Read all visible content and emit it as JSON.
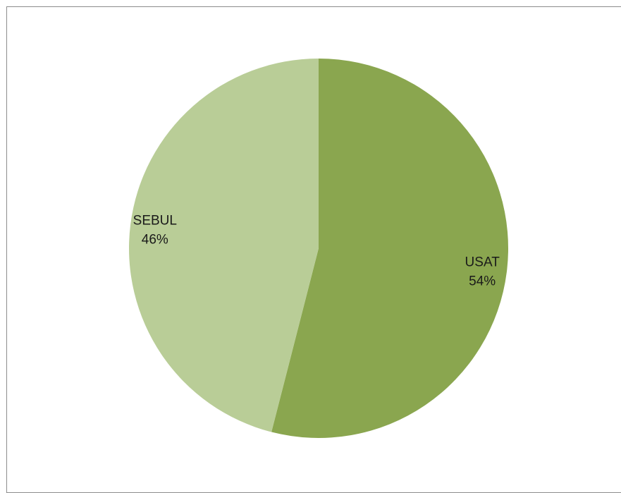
{
  "chart_data": {
    "type": "pie",
    "title": "",
    "categories": [
      "USAT",
      "SEBUL"
    ],
    "values": [
      54,
      46
    ],
    "value_labels": [
      "54%",
      "46%"
    ],
    "colors": [
      "#8aa64f",
      "#b9cd97"
    ],
    "legend": "none",
    "start_angle": "12 o'clock",
    "direction": "clockwise"
  }
}
